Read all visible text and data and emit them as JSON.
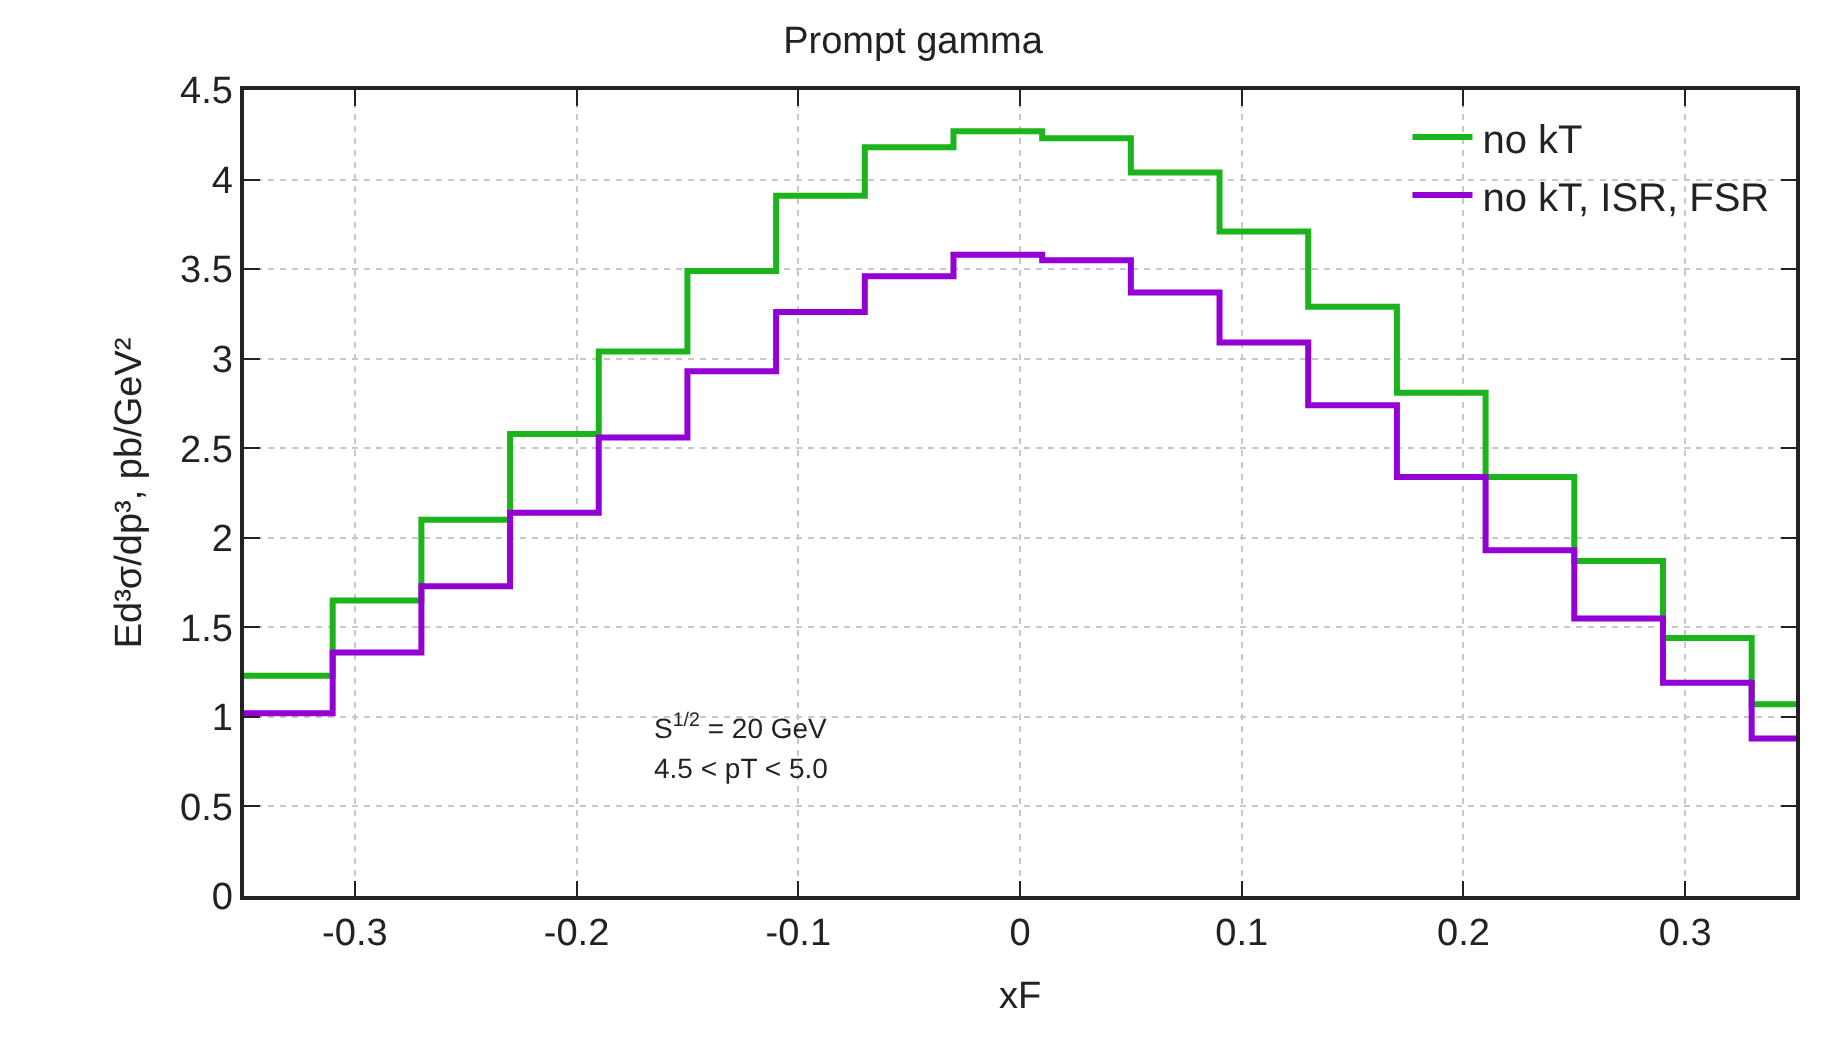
{
  "chart_data": {
    "type": "histogram",
    "title": "Prompt gamma",
    "xlabel": "xF",
    "ylabel": "Ed³σ/dp³, pb/GeV²",
    "bins": [
      -0.35,
      -0.31,
      -0.27,
      -0.23,
      -0.19,
      -0.15,
      -0.11,
      -0.07,
      -0.03,
      0.01,
      0.05,
      0.09,
      0.13,
      0.17,
      0.21,
      0.25,
      0.29,
      0.33,
      0.35
    ],
    "series": [
      {
        "name": "no kT",
        "color": "#1db31d",
        "values": [
          1.23,
          1.65,
          2.1,
          2.58,
          3.04,
          3.49,
          3.91,
          4.18,
          4.27,
          4.23,
          4.04,
          3.71,
          3.29,
          2.81,
          2.34,
          1.87,
          1.44,
          1.07
        ]
      },
      {
        "name": "no kT, ISR, FSR",
        "color": "#9400d3",
        "values": [
          1.02,
          1.36,
          1.73,
          2.14,
          2.56,
          2.93,
          3.26,
          3.46,
          3.58,
          3.55,
          3.37,
          3.09,
          2.74,
          2.34,
          1.93,
          1.55,
          1.19,
          0.88
        ]
      }
    ],
    "xlim": [
      -0.35,
      0.35
    ],
    "xticks": [
      -0.3,
      -0.2,
      -0.1,
      0,
      0.1,
      0.2,
      0.3
    ],
    "ylim": [
      0,
      4.5
    ],
    "yticks": [
      0,
      0.5,
      1,
      1.5,
      2,
      2.5,
      3,
      3.5,
      4,
      4.5
    ],
    "grid": true,
    "legend": "top right",
    "line_style": "solid",
    "annotations": [
      "S$^{1/2}$ = 20 GeV",
      "4.5 < pT < 5.0"
    ]
  }
}
